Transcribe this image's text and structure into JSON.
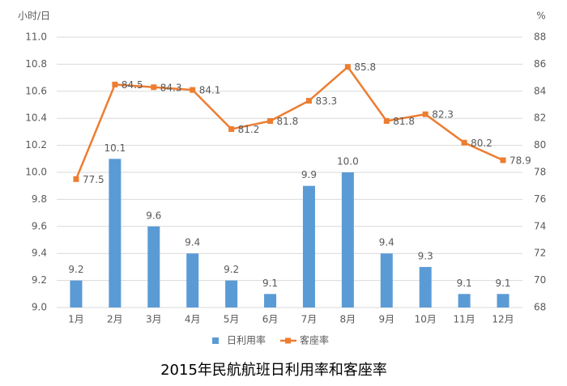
{
  "chart_data": {
    "type": "bar",
    "title": "2015年民航航班日利用率和客座率",
    "y_label": "小时/日",
    "y2_label": "%",
    "categories": [
      "1月",
      "2月",
      "3月",
      "4月",
      "5月",
      "6月",
      "7月",
      "8月",
      "9月",
      "10月",
      "11月",
      "12月"
    ],
    "series": [
      {
        "name": "日利用率",
        "type": "bar",
        "color": "#5b9bd5",
        "values": [
          9.2,
          10.1,
          9.6,
          9.4,
          9.2,
          9.1,
          9.9,
          10.0,
          9.4,
          9.3,
          9.1,
          9.1
        ],
        "value_labels": [
          "9.2",
          "10.1",
          "9.6",
          "9.4",
          "9.2",
          "9.1",
          "9.9",
          "10.0",
          "9.4",
          "9.3",
          "9.1",
          "9.1"
        ]
      },
      {
        "name": "客座率",
        "type": "line",
        "axis": "y2",
        "color": "#ed7d31",
        "values": [
          77.5,
          84.5,
          84.3,
          84.1,
          81.2,
          81.8,
          83.3,
          85.8,
          81.8,
          82.3,
          80.2,
          78.9
        ]
      }
    ],
    "ylim": [
      9,
      11
    ],
    "yticks": [
      {
        "value": 9,
        "label": "9.0"
      },
      9.2,
      9.4,
      9.6,
      9.8,
      {
        "value": 10,
        "label": "10.0"
      },
      10.2,
      10.4,
      10.6,
      10.8,
      {
        "value": 11,
        "label": "11.0"
      }
    ],
    "y2lim": [
      68,
      88
    ],
    "y2ticks": [
      68,
      70,
      72,
      74,
      76,
      78,
      80,
      82,
      84,
      86,
      88
    ],
    "grid": true,
    "legend": "bottom"
  }
}
